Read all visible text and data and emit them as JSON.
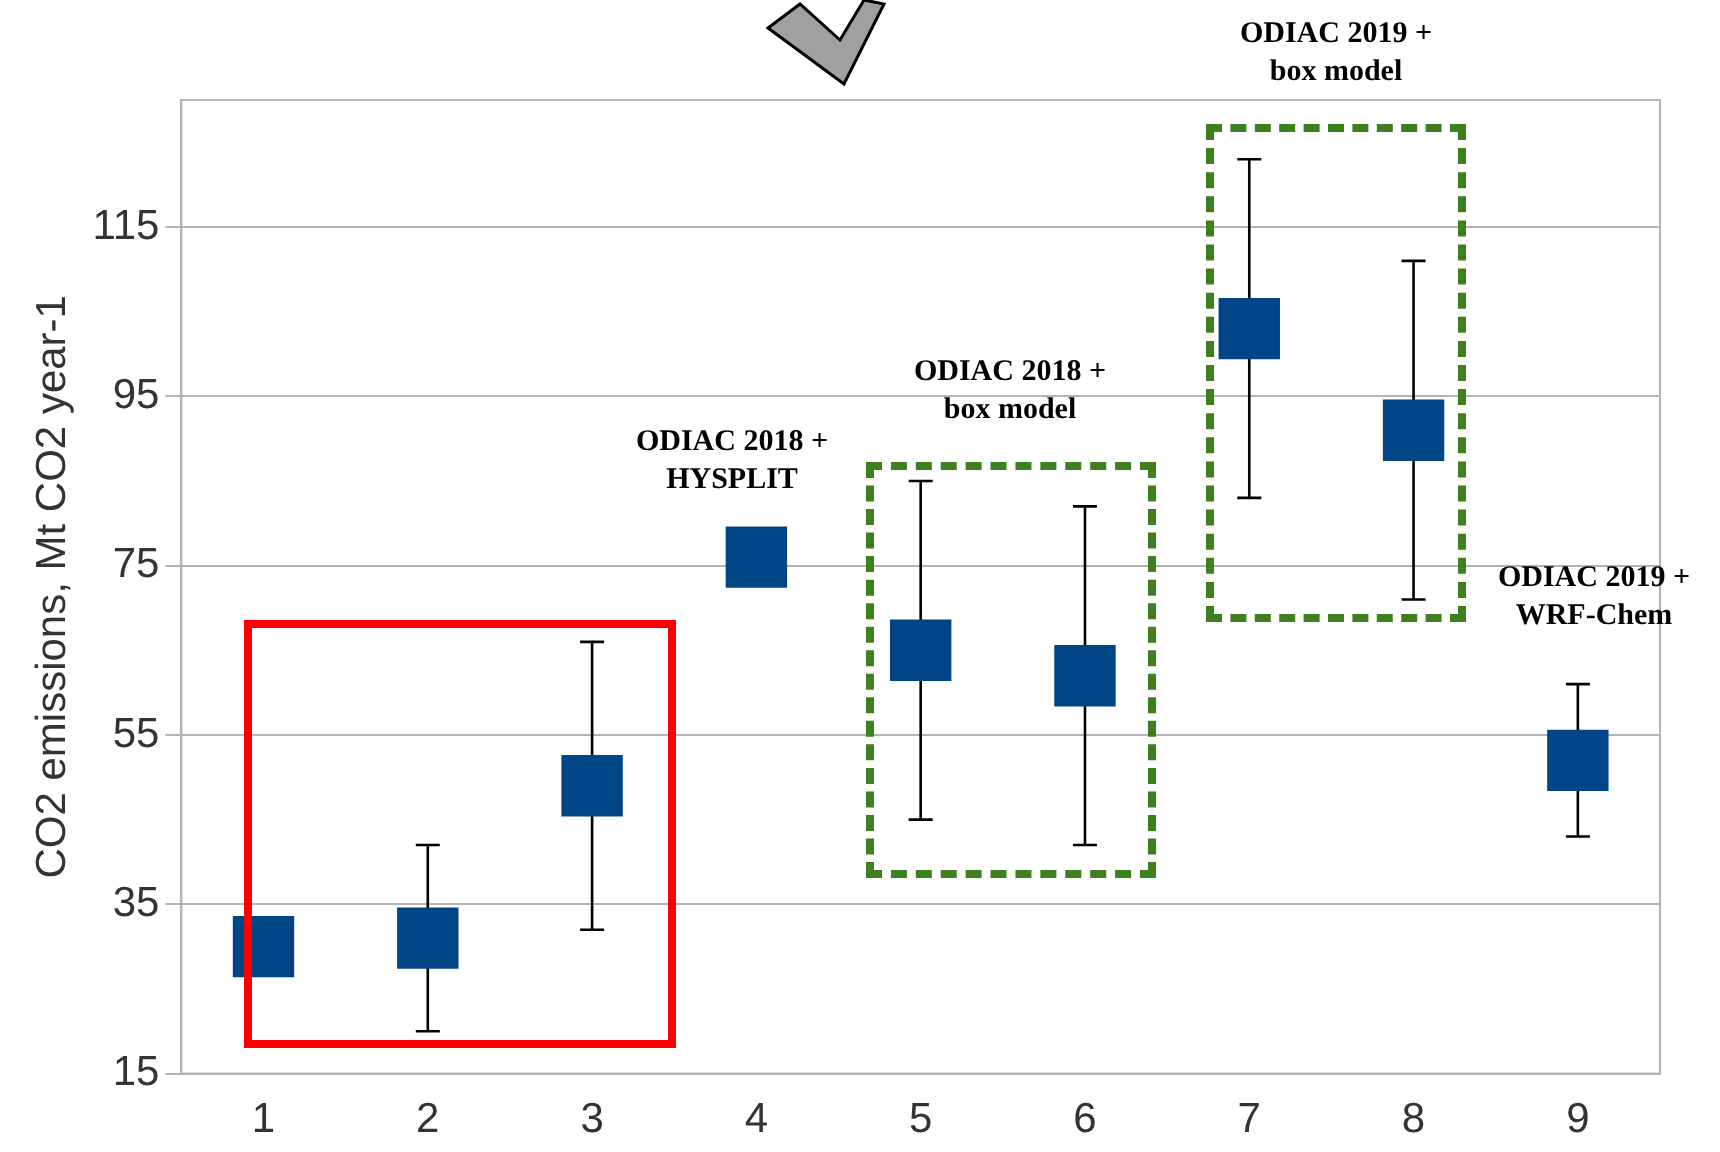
{
  "chart_data": {
    "type": "scatter",
    "ylabel": "CO2 emissions, Mt CO2 year-1",
    "categories": [
      "1",
      "2",
      "3",
      "4",
      "5",
      "6",
      "7",
      "8",
      "9"
    ],
    "series": [
      {
        "color": "#004586",
        "values": [
          30,
          31,
          49,
          76,
          65,
          62,
          103,
          91,
          52
        ],
        "errors": [
          null,
          [
            20,
            42
          ],
          [
            32,
            66
          ],
          null,
          [
            45,
            85
          ],
          [
            42,
            82
          ],
          [
            83,
            123
          ],
          [
            71,
            111
          ],
          [
            43,
            61
          ]
        ]
      }
    ],
    "ylim": [
      15,
      130
    ],
    "yticks": [
      15,
      35,
      55,
      75,
      95,
      115
    ],
    "grid": "y",
    "marker": "square",
    "legend": false,
    "annotations": [
      "ODIAC 2018 +\nHYSPLIT",
      "ODIAC 2018 +\nbox model",
      "ODIAC 2019 +\nbox model",
      "ODIAC 2019 +\nWRF-Chem"
    ]
  }
}
